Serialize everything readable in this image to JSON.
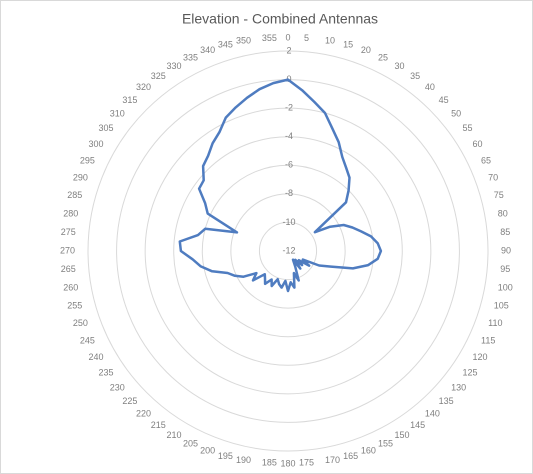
{
  "chart_data": {
    "type": "radar",
    "title": "Elevation - Combined Antennas",
    "categories": [
      "0",
      "5",
      "10",
      "15",
      "20",
      "25",
      "30",
      "35",
      "40",
      "45",
      "50",
      "55",
      "60",
      "65",
      "70",
      "75",
      "80",
      "85",
      "90",
      "95",
      "100",
      "105",
      "110",
      "115",
      "120",
      "125",
      "130",
      "135",
      "140",
      "145",
      "150",
      "155",
      "160",
      "165",
      "170",
      "175",
      "180",
      "185",
      "190",
      "195",
      "200",
      "205",
      "210",
      "215",
      "220",
      "225",
      "230",
      "235",
      "240",
      "245",
      "250",
      "255",
      "260",
      "265",
      "270",
      "275",
      "280",
      "285",
      "290",
      "295",
      "300",
      "305",
      "310",
      "315",
      "320",
      "325",
      "330",
      "335",
      "340",
      "345",
      "350",
      "355"
    ],
    "series": [
      {
        "name": "Combined Antennas",
        "color": "#4f7cc0",
        "values": [
          0,
          -0.7,
          -1.4,
          -2,
          -2.9,
          -3.6,
          -4.4,
          -4.9,
          -5.3,
          -6,
          -6.7,
          -9.7,
          -8.6,
          -7.7,
          -7.2,
          -6.7,
          -6.1,
          -5.7,
          -5.5,
          -5.7,
          -6.3,
          -7.3,
          -8.8,
          -9.6,
          -10.8,
          -10.2,
          -11,
          -10.6,
          -11.2,
          -10.5,
          -11.3,
          -10.8,
          -9.8,
          -10.4,
          -9.4,
          -9.8,
          -9.2,
          -9.9,
          -9.4,
          -9.6,
          -9.9,
          -9.3,
          -9.7,
          -9.2,
          -9.5,
          -9.7,
          -8.8,
          -9.3,
          -8.4,
          -7.9,
          -7.5,
          -6.5,
          -5.8,
          -5.3,
          -4.5,
          -4.4,
          -5.6,
          -6,
          -8.2,
          -5.8,
          -5.3,
          -4.4,
          -4.3,
          -3.6,
          -3.3,
          -2.8,
          -2.4,
          -1.7,
          -1.3,
          -0.9,
          -0.5,
          -0.2
        ]
      }
    ],
    "ylim": [
      -12,
      2
    ],
    "yticks": [
      -12,
      -10,
      -8,
      -6,
      -4,
      -2,
      0,
      2
    ],
    "grid": true
  }
}
